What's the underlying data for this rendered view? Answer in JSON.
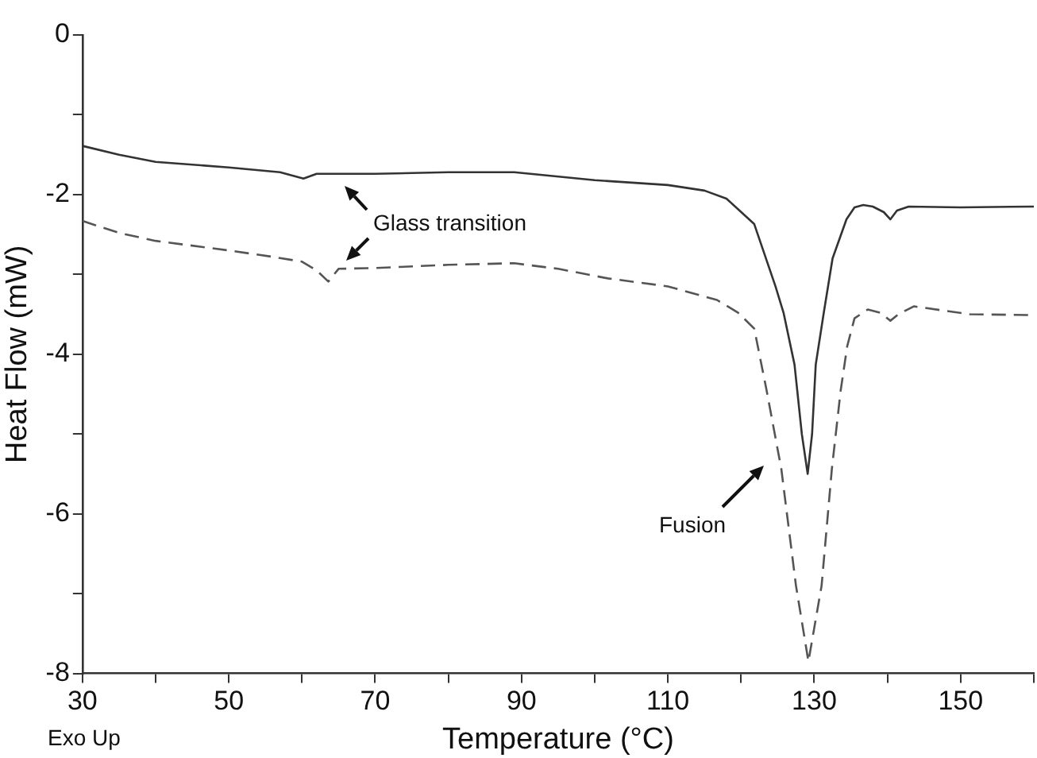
{
  "chart_data": {
    "type": "line",
    "xlabel": "Temperature (°C)",
    "ylabel": "Heat Flow (mW)",
    "xlim": [
      30,
      160
    ],
    "xticks": [
      30,
      {
        "value": 40,
        "label": null
      },
      50,
      {
        "value": 60,
        "label": null
      },
      70,
      {
        "value": 80,
        "label": null
      },
      90,
      {
        "value": 100,
        "label": null
      },
      110,
      {
        "value": 120,
        "label": null
      },
      130,
      {
        "value": 140,
        "label": null
      },
      150,
      {
        "value": 160,
        "label": null
      }
    ],
    "ylim": [
      -8,
      0
    ],
    "yticks": [
      -8,
      {
        "value": -7,
        "label": null
      },
      -6,
      {
        "value": -5,
        "label": null
      },
      -4,
      {
        "value": -3,
        "label": null
      },
      -2,
      {
        "value": -1,
        "label": null
      },
      0
    ],
    "grid": false,
    "legend": false,
    "marker": "none",
    "series": [
      {
        "color": "#333333",
        "line_style": "solid",
        "x": [
          30,
          35,
          40,
          50,
          57,
          60.2,
          62,
          70,
          80,
          89,
          100,
          110,
          115,
          118,
          121.8,
          124.7,
          125.8,
          127.3,
          128.3,
          129.1,
          129.7,
          130.2,
          131.3,
          132.5,
          134.4,
          135.5,
          136.7,
          138,
          139.5,
          140.4,
          141.3,
          142.9,
          150,
          160
        ],
        "values": [
          -1.39,
          -1.5,
          -1.59,
          -1.66,
          -1.72,
          -1.8,
          -1.74,
          -1.74,
          -1.72,
          -1.72,
          -1.82,
          -1.88,
          -1.95,
          -2.05,
          -2.37,
          -3.15,
          -3.48,
          -4.13,
          -5.0,
          -5.5,
          -5.0,
          -4.13,
          -3.48,
          -2.8,
          -2.31,
          -2.16,
          -2.13,
          -2.15,
          -2.22,
          -2.31,
          -2.2,
          -2.15,
          -2.16,
          -2.15
        ]
      },
      {
        "color": "#555555",
        "line_style": "dashed",
        "x": [
          30,
          35,
          40,
          50,
          56,
          60,
          62,
          63.6,
          65,
          70,
          80,
          89,
          95,
          101.8,
          110,
          116.7,
          119.6,
          121.8,
          123.5,
          125.5,
          127.5,
          129.2,
          131,
          132.4,
          133.6,
          134.5,
          135.5,
          137.3,
          139,
          140.4,
          141.5,
          143.6,
          151.3,
          160
        ],
        "values": [
          -2.33,
          -2.48,
          -2.58,
          -2.7,
          -2.78,
          -2.84,
          -2.95,
          -3.09,
          -2.93,
          -2.92,
          -2.88,
          -2.86,
          -2.93,
          -3.05,
          -3.15,
          -3.32,
          -3.48,
          -3.68,
          -4.46,
          -5.44,
          -6.9,
          -7.85,
          -6.9,
          -5.44,
          -4.46,
          -3.9,
          -3.55,
          -3.44,
          -3.48,
          -3.58,
          -3.5,
          -3.4,
          -3.5,
          -3.51
        ]
      }
    ],
    "annotations": [
      "Glass transition",
      "Fusion",
      "Exo Up"
    ]
  }
}
